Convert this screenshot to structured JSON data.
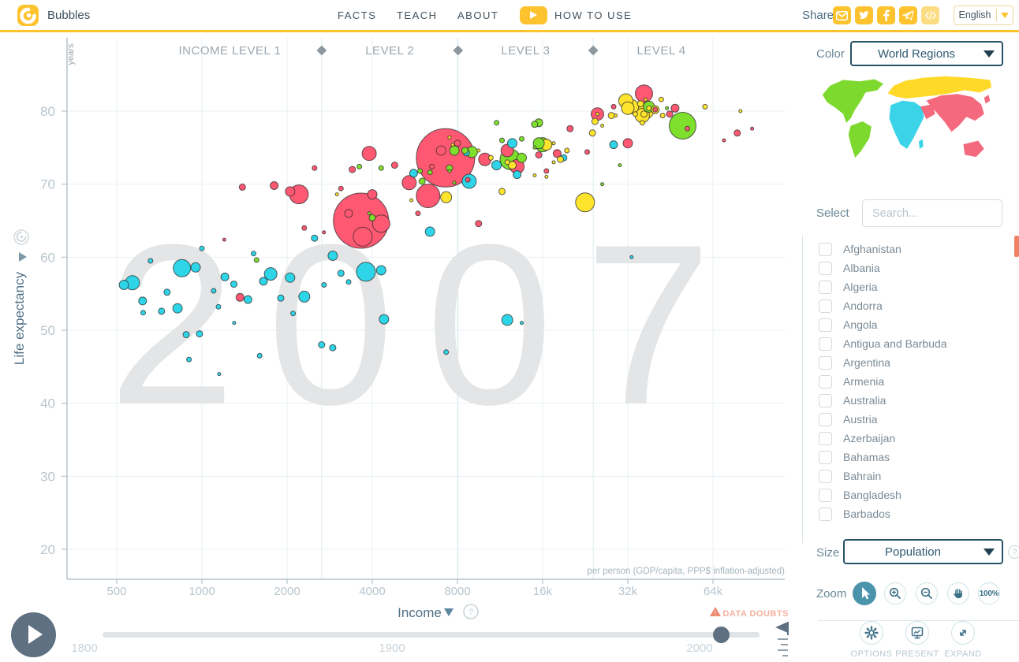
{
  "header": {
    "logo_title": "Bubbles",
    "nav": [
      "FACTS",
      "TEACH",
      "ABOUT"
    ],
    "how_to_use": "HOW TO USE",
    "share_label": "Share",
    "share_icons": [
      {
        "name": "email-icon"
      },
      {
        "name": "twitter-icon"
      },
      {
        "name": "facebook-icon"
      },
      {
        "name": "telegram-icon"
      },
      {
        "name": "embed-code-icon",
        "muted": true
      }
    ],
    "language": {
      "selected": "English"
    }
  },
  "chart": {
    "watermark_year": "2007",
    "years_unit": "years",
    "level_labels": [
      "INCOME LEVEL 1",
      "LEVEL 2",
      "LEVEL 3",
      "LEVEL 4"
    ],
    "y_axis_title": "Life expectancy",
    "x_axis_title": "Income",
    "x_axis_subtitle": "per person (GDP/capita, PPP$ inflation-adjusted)",
    "data_doubts": "DATA DOUBTS"
  },
  "chart_data": {
    "type": "scatter",
    "title": "Income vs Life expectancy, year 2007",
    "x_label": "Income per person (GDP/capita, PPP$ inflation-adjusted)",
    "y_label": "Life expectancy (years)",
    "x_scale": "log",
    "x_ticks": [
      {
        "v": 500,
        "label": "500"
      },
      {
        "v": 1000,
        "label": "1000"
      },
      {
        "v": 2000,
        "label": "2000"
      },
      {
        "v": 4000,
        "label": "4000"
      },
      {
        "v": 8000,
        "label": "8000"
      },
      {
        "v": 16000,
        "label": "16k"
      },
      {
        "v": 32000,
        "label": "32k"
      },
      {
        "v": 64000,
        "label": "64k"
      }
    ],
    "y_ticks": [
      20,
      30,
      40,
      50,
      60,
      70,
      80
    ],
    "y_range": [
      15,
      87
    ],
    "level_boundaries": [
      2650,
      8040,
      24150
    ],
    "legend": "bubble color = world region, bubble size = population",
    "region_colors": {
      "americas": "#7ee02c",
      "europe": "#ffe42d",
      "africa": "#2ed5e8",
      "asia": "#ff5872"
    },
    "series": [
      {
        "name": "africa",
        "points": [
          [
            568,
            56.5,
            9
          ],
          [
            658,
            59.5,
            3
          ],
          [
            850,
            58.5,
            11
          ],
          [
            617,
            54,
            5
          ],
          [
            753,
            55.2,
            4
          ],
          [
            820,
            53,
            6
          ],
          [
            1144,
            53.2,
            3
          ],
          [
            1205,
            57.3,
            5
          ],
          [
            1297,
            56.3,
            4
          ],
          [
            1455,
            54.2,
            5
          ],
          [
            1523,
            60.5,
            3
          ],
          [
            980,
            49.5,
            4
          ],
          [
            900,
            46,
            3
          ],
          [
            1600,
            46.5,
            3
          ],
          [
            1000,
            61.2,
            3
          ],
          [
            1650,
            56.7,
            5
          ],
          [
            1750,
            57.7,
            8
          ],
          [
            2050,
            57.2,
            6
          ],
          [
            2300,
            54.6,
            7
          ],
          [
            1900,
            54.4,
            4
          ],
          [
            2650,
            48,
            4
          ],
          [
            3800,
            58,
            12
          ],
          [
            4300,
            58.2,
            6
          ],
          [
            2900,
            60.2,
            6
          ],
          [
            3100,
            57.8,
            4
          ],
          [
            4400,
            51.5,
            6
          ],
          [
            5600,
            71.5,
            5
          ],
          [
            8800,
            70.4,
            9
          ],
          [
            6400,
            63.5,
            6
          ],
          [
            7300,
            47,
            3
          ],
          [
            12000,
            51.4,
            7
          ],
          [
            13500,
            51,
            2
          ],
          [
            33000,
            60,
            2
          ],
          [
            2100,
            52.3,
            3
          ],
          [
            1300,
            51,
            2
          ],
          [
            2700,
            56.2,
            3
          ],
          [
            3300,
            56.6,
            3
          ],
          [
            720,
            52.6,
            4
          ],
          [
            950,
            58.6,
            6
          ],
          [
            1100,
            55.4,
            3
          ],
          [
            530,
            56.2,
            6
          ],
          [
            620,
            52.4,
            3
          ],
          [
            13000,
            71.3,
            5
          ],
          [
            11000,
            72.6,
            6
          ],
          [
            8600,
            74.3,
            4
          ],
          [
            19000,
            73.6,
            4
          ],
          [
            880,
            49.4,
            4
          ],
          [
            2500,
            62.6,
            4
          ],
          [
            1150,
            44,
            2
          ],
          [
            2900,
            47.6,
            4
          ],
          [
            12500,
            75.6,
            6
          ],
          [
            28500,
            75.4,
            5
          ]
        ]
      },
      {
        "name": "asia",
        "points": [
          [
            7260,
            73.6,
            37
          ],
          [
            3650,
            65,
            35
          ],
          [
            6300,
            68.4,
            15
          ],
          [
            4300,
            64.6,
            11
          ],
          [
            2200,
            68.6,
            12
          ],
          [
            36500,
            82.4,
            11
          ],
          [
            5400,
            70.2,
            9
          ],
          [
            3900,
            74.2,
            9
          ],
          [
            13000,
            72.4,
            9
          ],
          [
            12000,
            74.6,
            8
          ],
          [
            10000,
            73.4,
            8
          ],
          [
            1363,
            54.5,
            5
          ],
          [
            25000,
            79.6,
            8
          ],
          [
            32000,
            75.6,
            6
          ],
          [
            4000,
            68.6,
            6
          ],
          [
            1390,
            69.6,
            4
          ],
          [
            2300,
            64,
            3
          ],
          [
            3400,
            72,
            4
          ],
          [
            4800,
            72.6,
            4
          ],
          [
            8700,
            70.6,
            3
          ],
          [
            15500,
            74,
            4
          ],
          [
            20000,
            77.6,
            4
          ],
          [
            28500,
            80.6,
            3
          ],
          [
            45000,
            79.6,
            4
          ],
          [
            52000,
            77.6,
            3
          ],
          [
            78000,
            77,
            4
          ],
          [
            88000,
            77.6,
            2
          ],
          [
            70000,
            76,
            2
          ],
          [
            47000,
            80.4,
            5
          ],
          [
            18000,
            74.2,
            5
          ],
          [
            8000,
            75.6,
            4
          ],
          [
            2700,
            63.4,
            2
          ],
          [
            1200,
            62.4,
            2
          ],
          [
            9500,
            64.6,
            4
          ],
          [
            3100,
            69.4,
            3
          ],
          [
            5800,
            66,
            3
          ],
          [
            2500,
            72.2,
            3
          ],
          [
            40000,
            80.2,
            3
          ],
          [
            6500,
            72.4,
            3
          ],
          [
            1800,
            69.8,
            5
          ],
          [
            2050,
            69,
            6
          ],
          [
            16500,
            71.8,
            3
          ],
          [
            23000,
            74.4,
            3
          ]
        ]
      },
      {
        "name": "europe",
        "points": [
          [
            22600,
            67.5,
            12
          ],
          [
            37000,
            80,
            10
          ],
          [
            36000,
            79.4,
            9
          ],
          [
            33000,
            80.6,
            9
          ],
          [
            31500,
            81.4,
            9
          ],
          [
            32000,
            80.4,
            8
          ],
          [
            7300,
            68.2,
            7
          ],
          [
            16500,
            75.4,
            7
          ],
          [
            12500,
            72.6,
            5
          ],
          [
            40000,
            80.2,
            5
          ],
          [
            36500,
            79.6,
            4
          ],
          [
            28000,
            79.4,
            4
          ],
          [
            24000,
            77,
            4
          ],
          [
            24500,
            78.6,
            4
          ],
          [
            35500,
            81,
            4
          ],
          [
            18500,
            73.4,
            4
          ],
          [
            11500,
            69,
            4
          ],
          [
            38000,
            80.4,
            3
          ],
          [
            42000,
            81.6,
            3
          ],
          [
            12000,
            73,
            3
          ],
          [
            10500,
            73.6,
            3
          ],
          [
            36000,
            78.4,
            3
          ],
          [
            34000,
            79.6,
            3
          ],
          [
            60000,
            80.6,
            3
          ],
          [
            42500,
            79.4,
            3
          ],
          [
            19500,
            74.6,
            3
          ],
          [
            17500,
            75.6,
            2
          ],
          [
            3000,
            68.6,
            2
          ],
          [
            7500,
            76.4,
            2
          ],
          [
            16500,
            71,
            2
          ],
          [
            15000,
            71.2,
            2
          ],
          [
            17500,
            73,
            2
          ],
          [
            26000,
            78,
            2
          ],
          [
            9500,
            74.6,
            2
          ],
          [
            7700,
            75.4,
            2
          ],
          [
            80000,
            80,
            2
          ],
          [
            37000,
            81.6,
            2
          ],
          [
            25000,
            79.6,
            2
          ],
          [
            29000,
            79.4,
            2
          ],
          [
            5500,
            67.8,
            2
          ]
        ]
      },
      {
        "name": "americas",
        "points": [
          [
            50000,
            78,
            17
          ],
          [
            12300,
            73.4,
            13
          ],
          [
            16000,
            75.4,
            9
          ],
          [
            9000,
            74.4,
            7
          ],
          [
            15500,
            75.6,
            7
          ],
          [
            38000,
            80.6,
            7
          ],
          [
            7800,
            74.6,
            6
          ],
          [
            13500,
            73.6,
            6
          ],
          [
            15500,
            78.4,
            5
          ],
          [
            8500,
            74.6,
            4
          ],
          [
            6000,
            70.4,
            4
          ],
          [
            15000,
            78.2,
            4
          ],
          [
            4000,
            65.4,
            4
          ],
          [
            7500,
            72.2,
            4
          ],
          [
            1560,
            59.6,
            3
          ],
          [
            4300,
            72.2,
            3
          ],
          [
            5900,
            71.8,
            3
          ],
          [
            3600,
            72.4,
            3
          ],
          [
            6400,
            71.6,
            3
          ],
          [
            11000,
            78.4,
            3
          ],
          [
            11500,
            76,
            3
          ],
          [
            13500,
            76.2,
            3
          ],
          [
            7500,
            71.8,
            2
          ],
          [
            26000,
            70,
            2
          ],
          [
            3900,
            66,
            2
          ],
          [
            7800,
            70.2,
            2
          ],
          [
            30000,
            72.6,
            2
          ],
          [
            15000,
            75,
            2
          ],
          [
            44000,
            80.4,
            2
          ]
        ]
      }
    ],
    "rings": [
      [
        3300,
        66,
        5
      ],
      [
        3700,
        62.8,
        12
      ],
      [
        7000,
        74.6,
        6
      ]
    ]
  },
  "sidebar": {
    "color_label": "Color",
    "color_value": "World Regions",
    "map_colors": {
      "americas": "#7ed92f",
      "europe": "#ffd928",
      "africa": "#3bd3e8",
      "asia": "#f4697d"
    },
    "select_label": "Select",
    "search_placeholder": "Search...",
    "countries": [
      "Afghanistan",
      "Albania",
      "Algeria",
      "Andorra",
      "Angola",
      "Antigua and Barbuda",
      "Argentina",
      "Armenia",
      "Australia",
      "Austria",
      "Azerbaijan",
      "Bahamas",
      "Bahrain",
      "Bangladesh",
      "Barbados"
    ],
    "size_label": "Size",
    "size_value": "Population",
    "zoom_label": "Zoom",
    "zoom_pct": "100%",
    "footer_buttons": [
      {
        "icon": "gear-icon",
        "label": "OPTIONS"
      },
      {
        "icon": "present-icon",
        "label": "PRESENT"
      },
      {
        "icon": "expand-icon",
        "label": "EXPAND"
      }
    ]
  },
  "timeline": {
    "year_labels": [
      1800,
      1900,
      2000
    ],
    "current_year": 2007
  }
}
